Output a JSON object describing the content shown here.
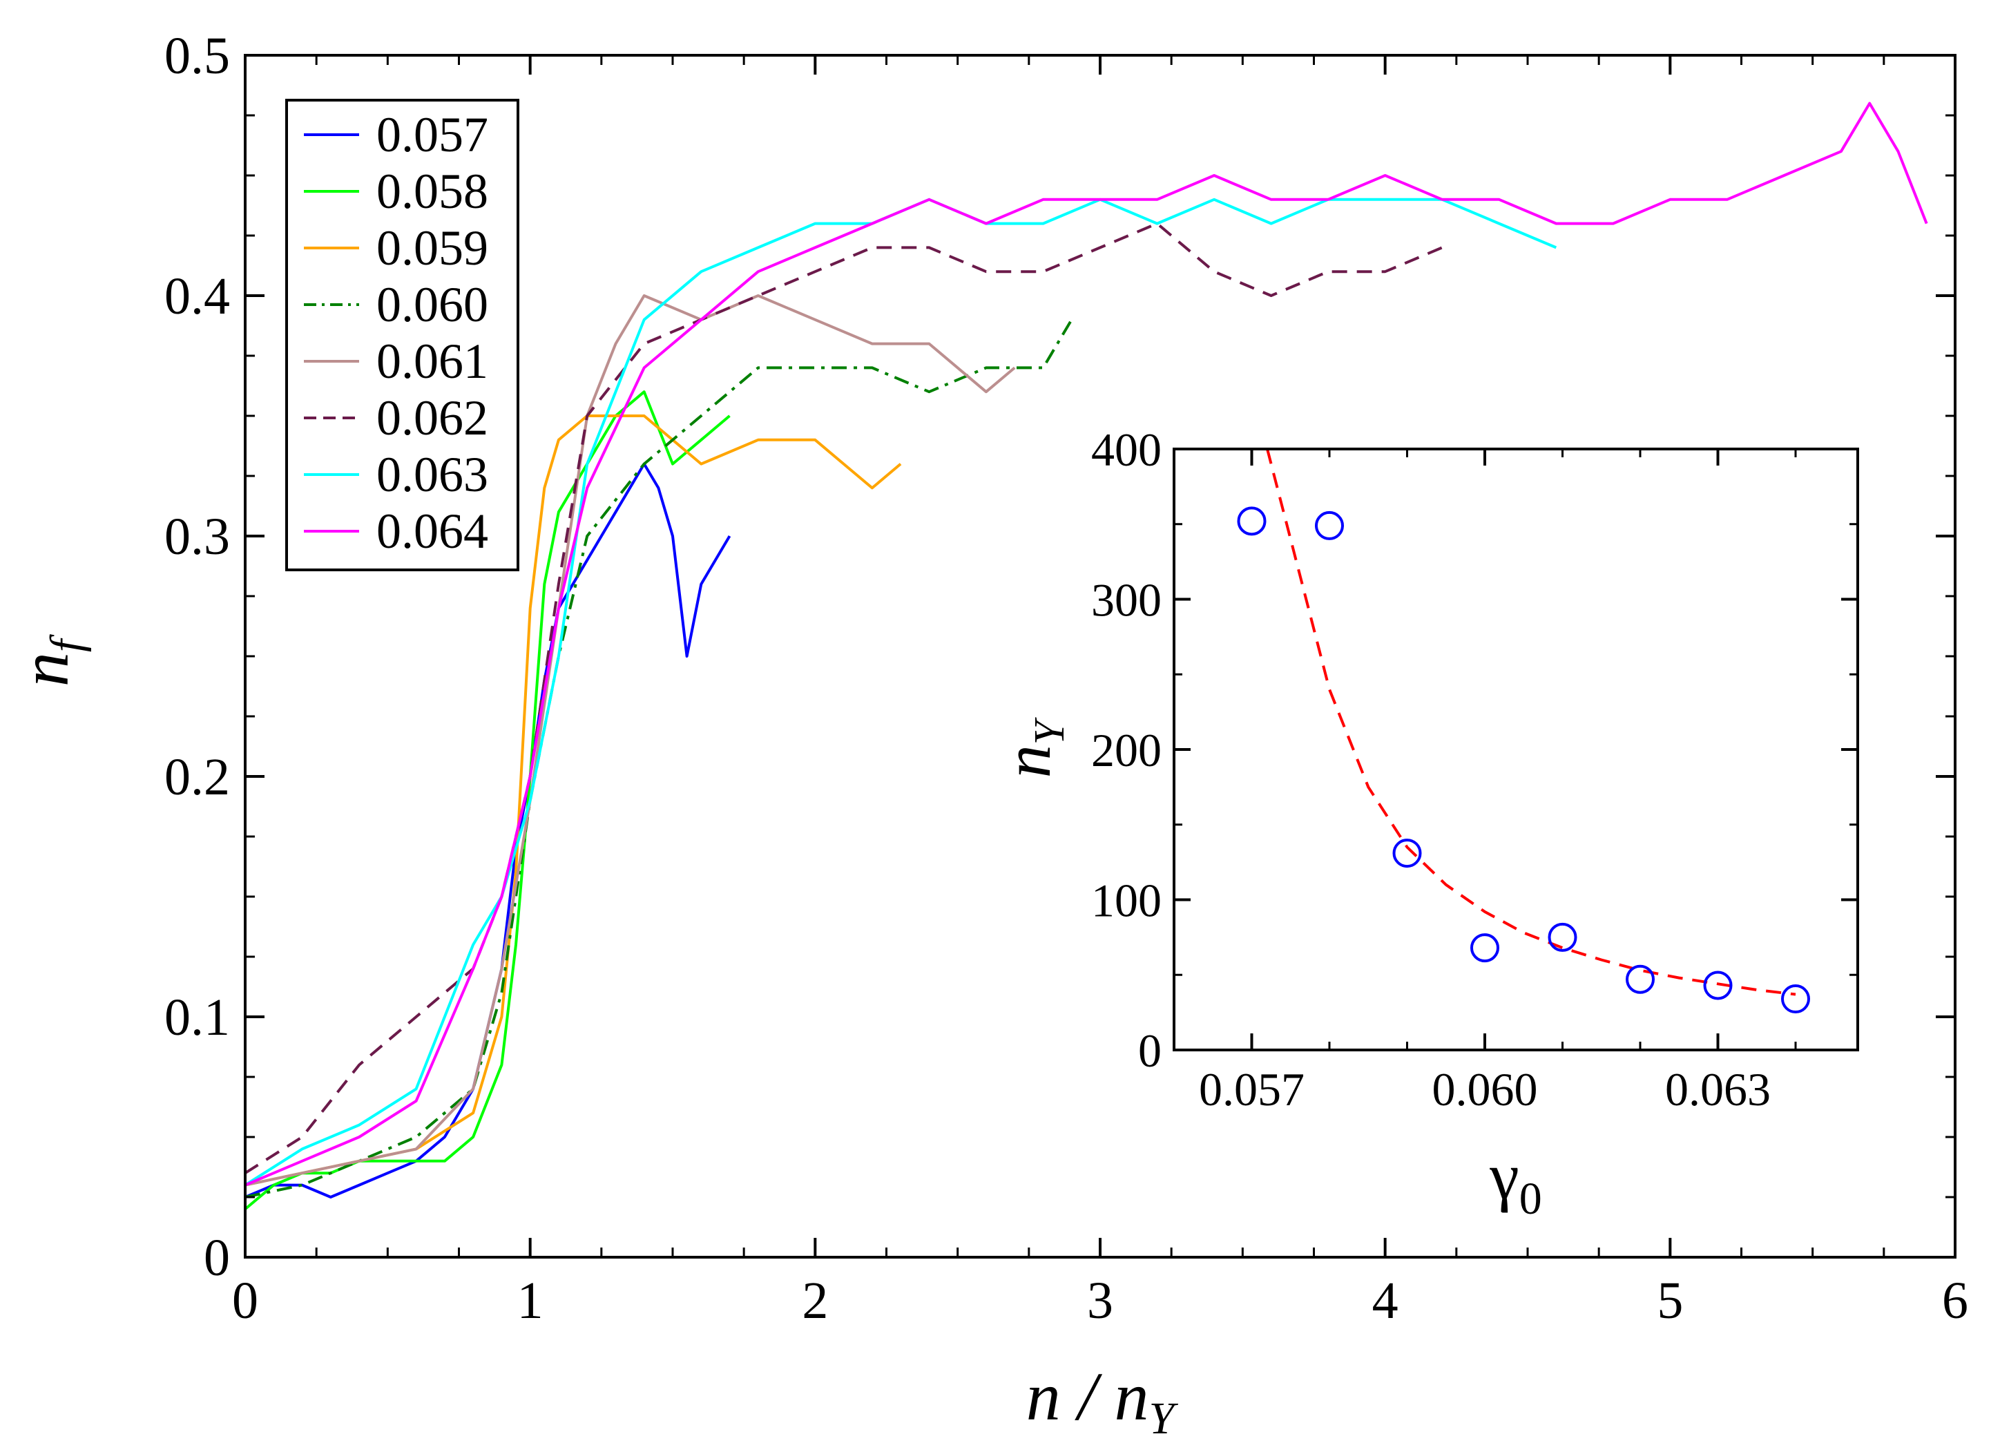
{
  "chart_data": [
    {
      "type": "line",
      "xlabel": {
        "main": "n / n",
        "sub": "Y"
      },
      "ylabel": {
        "main": "n",
        "sub": "f"
      },
      "xlim": [
        0,
        6
      ],
      "ylim": [
        0,
        0.5
      ],
      "xticks": [
        "0",
        "1",
        "2",
        "3",
        "4",
        "5",
        "6"
      ],
      "yticks": [
        "0",
        "0.1",
        "0.2",
        "0.3",
        "0.4",
        "0.5"
      ],
      "legend_position": "top-left",
      "grid": false,
      "series": [
        {
          "name": "0.057",
          "color": "#0000ff",
          "dash": "solid",
          "x": [
            0,
            0.1,
            0.2,
            0.3,
            0.4,
            0.5,
            0.6,
            0.7,
            0.8,
            0.9,
            0.95,
            1.0,
            1.05,
            1.1,
            1.2,
            1.3,
            1.4,
            1.45,
            1.5,
            1.55,
            1.6,
            1.7
          ],
          "y": [
            0.025,
            0.03,
            0.03,
            0.025,
            0.03,
            0.035,
            0.04,
            0.05,
            0.07,
            0.12,
            0.17,
            0.2,
            0.24,
            0.27,
            0.29,
            0.31,
            0.33,
            0.32,
            0.3,
            0.25,
            0.28,
            0.3
          ]
        },
        {
          "name": "0.058",
          "color": "#00ff00",
          "dash": "solid",
          "x": [
            0,
            0.1,
            0.2,
            0.3,
            0.4,
            0.5,
            0.6,
            0.7,
            0.8,
            0.9,
            0.95,
            1.0,
            1.05,
            1.1,
            1.2,
            1.3,
            1.4,
            1.5,
            1.6,
            1.7
          ],
          "y": [
            0.02,
            0.03,
            0.035,
            0.035,
            0.04,
            0.04,
            0.04,
            0.04,
            0.05,
            0.08,
            0.13,
            0.2,
            0.28,
            0.31,
            0.33,
            0.35,
            0.36,
            0.33,
            0.34,
            0.35
          ]
        },
        {
          "name": "0.059",
          "color": "#ffa500",
          "dash": "solid",
          "x": [
            0,
            0.2,
            0.4,
            0.6,
            0.8,
            0.9,
            0.95,
            1.0,
            1.05,
            1.1,
            1.2,
            1.4,
            1.6,
            1.8,
            2.0,
            2.1,
            2.2,
            2.3
          ],
          "y": [
            0.03,
            0.035,
            0.04,
            0.045,
            0.06,
            0.1,
            0.16,
            0.27,
            0.32,
            0.34,
            0.35,
            0.35,
            0.33,
            0.34,
            0.34,
            0.33,
            0.32,
            0.33
          ]
        },
        {
          "name": "0.060",
          "color": "#008000",
          "dash": "dashdot",
          "x": [
            0,
            0.2,
            0.4,
            0.6,
            0.8,
            0.9,
            1.0,
            1.1,
            1.2,
            1.4,
            1.6,
            1.8,
            2.0,
            2.2,
            2.4,
            2.6,
            2.8,
            2.9
          ],
          "y": [
            0.025,
            0.03,
            0.04,
            0.05,
            0.07,
            0.11,
            0.19,
            0.25,
            0.3,
            0.33,
            0.35,
            0.37,
            0.37,
            0.37,
            0.36,
            0.37,
            0.37,
            0.39
          ]
        },
        {
          "name": "0.061",
          "color": "#bc8f8f",
          "dash": "solid",
          "x": [
            0,
            0.2,
            0.4,
            0.6,
            0.8,
            0.9,
            1.0,
            1.1,
            1.2,
            1.3,
            1.4,
            1.6,
            1.8,
            2.0,
            2.2,
            2.4,
            2.6,
            2.7
          ],
          "y": [
            0.03,
            0.035,
            0.04,
            0.045,
            0.07,
            0.12,
            0.19,
            0.27,
            0.35,
            0.38,
            0.4,
            0.39,
            0.4,
            0.39,
            0.38,
            0.38,
            0.36,
            0.37
          ]
        },
        {
          "name": "0.062",
          "color": "#6b1a4a",
          "dash": "dashed",
          "x": [
            0,
            0.2,
            0.4,
            0.6,
            0.8,
            0.9,
            1.0,
            1.1,
            1.2,
            1.4,
            1.6,
            1.8,
            2.0,
            2.2,
            2.4,
            2.6,
            2.8,
            3.0,
            3.2,
            3.4,
            3.6,
            3.8,
            4.0,
            4.2
          ],
          "y": [
            0.035,
            0.05,
            0.08,
            0.1,
            0.12,
            0.15,
            0.2,
            0.28,
            0.35,
            0.38,
            0.39,
            0.4,
            0.41,
            0.42,
            0.42,
            0.41,
            0.41,
            0.42,
            0.43,
            0.41,
            0.4,
            0.41,
            0.41,
            0.42
          ]
        },
        {
          "name": "0.063",
          "color": "#00ffff",
          "dash": "solid",
          "x": [
            0,
            0.2,
            0.4,
            0.6,
            0.8,
            0.9,
            1.0,
            1.1,
            1.2,
            1.4,
            1.6,
            1.8,
            2.0,
            2.2,
            2.4,
            2.6,
            2.8,
            3.0,
            3.2,
            3.4,
            3.6,
            3.8,
            4.0,
            4.2,
            4.4,
            4.6
          ],
          "y": [
            0.03,
            0.045,
            0.055,
            0.07,
            0.13,
            0.15,
            0.19,
            0.25,
            0.33,
            0.39,
            0.41,
            0.42,
            0.43,
            0.43,
            0.44,
            0.43,
            0.43,
            0.44,
            0.43,
            0.44,
            0.43,
            0.44,
            0.44,
            0.44,
            0.43,
            0.42
          ]
        },
        {
          "name": "0.064",
          "color": "#ff00ff",
          "dash": "solid",
          "x": [
            0,
            0.2,
            0.4,
            0.6,
            0.8,
            0.9,
            1.0,
            1.1,
            1.2,
            1.4,
            1.6,
            1.8,
            2.0,
            2.2,
            2.4,
            2.6,
            2.8,
            3.0,
            3.2,
            3.4,
            3.6,
            3.8,
            4.0,
            4.2,
            4.4,
            4.6,
            4.8,
            5.0,
            5.2,
            5.4,
            5.6,
            5.7,
            5.8,
            5.9
          ],
          "y": [
            0.03,
            0.04,
            0.05,
            0.065,
            0.12,
            0.15,
            0.2,
            0.27,
            0.32,
            0.37,
            0.39,
            0.41,
            0.42,
            0.43,
            0.44,
            0.43,
            0.44,
            0.44,
            0.44,
            0.45,
            0.44,
            0.44,
            0.45,
            0.44,
            0.44,
            0.43,
            0.43,
            0.44,
            0.44,
            0.45,
            0.46,
            0.48,
            0.46,
            0.43
          ]
        }
      ]
    },
    {
      "type": "scatter",
      "xlabel": {
        "main": "γ",
        "sub": "0"
      },
      "ylabel": {
        "main": "n",
        "sub": "Y"
      },
      "xlim": [
        0.056,
        0.0648
      ],
      "ylim": [
        0,
        400
      ],
      "xticks": [
        "0.057",
        "0.060",
        "0.063"
      ],
      "yticks": [
        "0",
        "100",
        "200",
        "300",
        "400"
      ],
      "points": {
        "color": "#0000ff",
        "x": [
          0.057,
          0.058,
          0.059,
          0.06,
          0.061,
          0.062,
          0.063,
          0.064
        ],
        "y": [
          352,
          349,
          131,
          68,
          75,
          47,
          43,
          34
        ]
      },
      "fit": {
        "color": "#ff0000",
        "dash": "dashed",
        "x": [
          0.0572,
          0.0575,
          0.058,
          0.0585,
          0.059,
          0.0595,
          0.06,
          0.0605,
          0.061,
          0.0615,
          0.062,
          0.0625,
          0.063,
          0.0635,
          0.064
        ],
        "y": [
          400,
          340,
          240,
          175,
          135,
          110,
          92,
          78,
          68,
          60,
          53,
          48,
          44,
          40,
          37
        ]
      }
    }
  ]
}
